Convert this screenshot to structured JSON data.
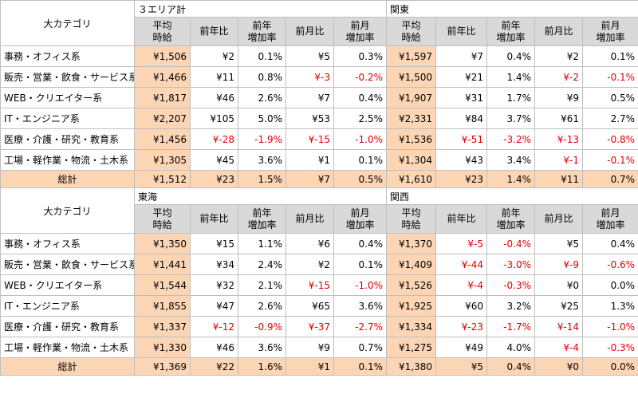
{
  "header_label": "大カテゴリ",
  "column_headers": {
    "avg": [
      "平均",
      "時給"
    ],
    "yoy": "前年比",
    "yoy_rate": [
      "前年",
      "増加率"
    ],
    "mom": "前月比",
    "mom_rate": [
      "前月",
      "増加率"
    ]
  },
  "blocks": [
    {
      "regions": [
        "３エリア計",
        "関東"
      ],
      "rows": [
        {
          "label": "事務・オフィス系",
          "cells": [
            [
              "¥1,506",
              "¥2",
              "0.1%",
              "¥5",
              "0.3%"
            ],
            [
              "¥1,597",
              "¥7",
              "0.4%",
              "¥2",
              "0.1%"
            ]
          ]
        },
        {
          "label": "販売・営業・飲食・サービス系",
          "cells": [
            [
              "¥1,466",
              "¥11",
              "0.8%",
              "¥-3",
              "-0.2%"
            ],
            [
              "¥1,500",
              "¥21",
              "1.4%",
              "¥-2",
              "-0.1%"
            ]
          ]
        },
        {
          "label": "WEB・クリエイター系",
          "cells": [
            [
              "¥1,817",
              "¥46",
              "2.6%",
              "¥7",
              "0.4%"
            ],
            [
              "¥1,907",
              "¥31",
              "1.7%",
              "¥9",
              "0.5%"
            ]
          ]
        },
        {
          "label": "IT・エンジニア系",
          "cells": [
            [
              "¥2,207",
              "¥105",
              "5.0%",
              "¥53",
              "2.5%"
            ],
            [
              "¥2,331",
              "¥84",
              "3.7%",
              "¥61",
              "2.7%"
            ]
          ]
        },
        {
          "label": "医療・介護・研究・教育系",
          "cells": [
            [
              "¥1,456",
              "¥-28",
              "-1.9%",
              "¥-15",
              "-1.0%"
            ],
            [
              "¥1,536",
              "¥-51",
              "-3.2%",
              "¥-13",
              "-0.8%"
            ]
          ]
        },
        {
          "label": "工場・軽作業・物流・土木系",
          "cells": [
            [
              "¥1,305",
              "¥45",
              "3.6%",
              "¥1",
              "0.1%"
            ],
            [
              "¥1,304",
              "¥43",
              "3.4%",
              "¥-1",
              "-0.1%"
            ]
          ]
        }
      ],
      "total": {
        "label": "総計",
        "cells": [
          [
            "¥1,512",
            "¥23",
            "1.5%",
            "¥7",
            "0.5%"
          ],
          [
            "¥1,610",
            "¥23",
            "1.4%",
            "¥11",
            "0.7%"
          ]
        ]
      }
    },
    {
      "regions": [
        "東海",
        "関西"
      ],
      "rows": [
        {
          "label": "事務・オフィス系",
          "cells": [
            [
              "¥1,350",
              "¥15",
              "1.1%",
              "¥6",
              "0.4%"
            ],
            [
              "¥1,370",
              "¥-5",
              "-0.4%",
              "¥5",
              "0.4%"
            ]
          ]
        },
        {
          "label": "販売・営業・飲食・サービス系",
          "cells": [
            [
              "¥1,441",
              "¥34",
              "2.4%",
              "¥2",
              "0.1%"
            ],
            [
              "¥1,409",
              "¥-44",
              "-3.0%",
              "¥-9",
              "-0.6%"
            ]
          ]
        },
        {
          "label": "WEB・クリエイター系",
          "cells": [
            [
              "¥1,544",
              "¥32",
              "2.1%",
              "¥-15",
              "-1.0%"
            ],
            [
              "¥1,526",
              "¥-4",
              "-0.3%",
              "¥0",
              "0.0%"
            ]
          ]
        },
        {
          "label": "IT・エンジニア系",
          "cells": [
            [
              "¥1,855",
              "¥47",
              "2.6%",
              "¥65",
              "3.6%"
            ],
            [
              "¥1,925",
              "¥60",
              "3.2%",
              "¥25",
              "1.3%"
            ]
          ]
        },
        {
          "label": "医療・介護・研究・教育系",
          "cells": [
            [
              "¥1,337",
              "¥-12",
              "-0.9%",
              "¥-37",
              "-2.7%"
            ],
            [
              "¥1,334",
              "¥-23",
              "-1.7%",
              "¥-14",
              "-1.0%"
            ]
          ]
        },
        {
          "label": "工場・軽作業・物流・土木系",
          "cells": [
            [
              "¥1,330",
              "¥46",
              "3.6%",
              "¥9",
              "0.7%"
            ],
            [
              "¥1,275",
              "¥49",
              "4.0%",
              "¥-4",
              "-0.3%"
            ]
          ]
        }
      ],
      "total": {
        "label": "総計",
        "cells": [
          [
            "¥1,369",
            "¥22",
            "1.6%",
            "¥1",
            "0.1%"
          ],
          [
            "¥1,380",
            "¥5",
            "0.4%",
            "¥0",
            "0.0%"
          ]
        ]
      }
    }
  ]
}
